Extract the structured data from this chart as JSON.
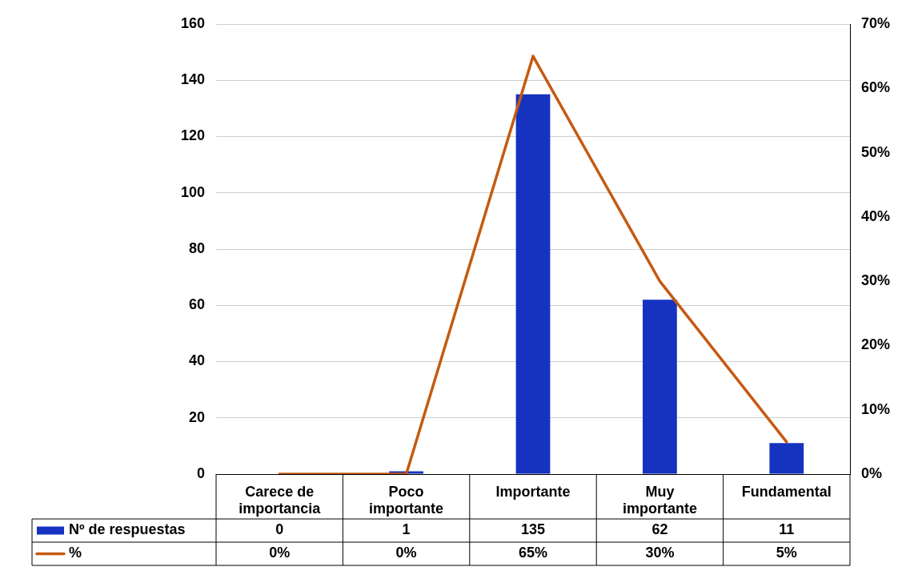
{
  "chart_data": {
    "type": "bar",
    "categories": [
      "Carece de importancia",
      "Poco importante",
      "Importante",
      "Muy importante",
      "Fundamental"
    ],
    "series": [
      {
        "name": "Nº de respuestas",
        "color": "#1533c0",
        "values": [
          0,
          1,
          135,
          62,
          11
        ]
      },
      {
        "name": "%",
        "type": "line",
        "axis": "y2",
        "color": "#c55a11",
        "values": [
          0,
          0,
          65,
          30,
          5
        ],
        "value_labels": [
          "0%",
          "0%",
          "65%",
          "30%",
          "5%"
        ]
      }
    ],
    "ylim": [
      0,
      160
    ],
    "yticks": [
      0,
      20,
      40,
      60,
      80,
      100,
      120,
      140,
      160
    ],
    "y2lim": [
      0,
      70
    ],
    "y2ticks": [
      {
        "value": 0,
        "label": "0%"
      },
      {
        "value": 10,
        "label": "10%"
      },
      {
        "value": 20,
        "label": "20%"
      },
      {
        "value": 30,
        "label": "30%"
      },
      {
        "value": 40,
        "label": "40%"
      },
      {
        "value": 50,
        "label": "50%"
      },
      {
        "value": 60,
        "label": "60%"
      },
      {
        "value": 70,
        "label": "70%"
      }
    ],
    "grid": "y",
    "legend": "bottom",
    "data_labels": true,
    "marker": "none"
  }
}
